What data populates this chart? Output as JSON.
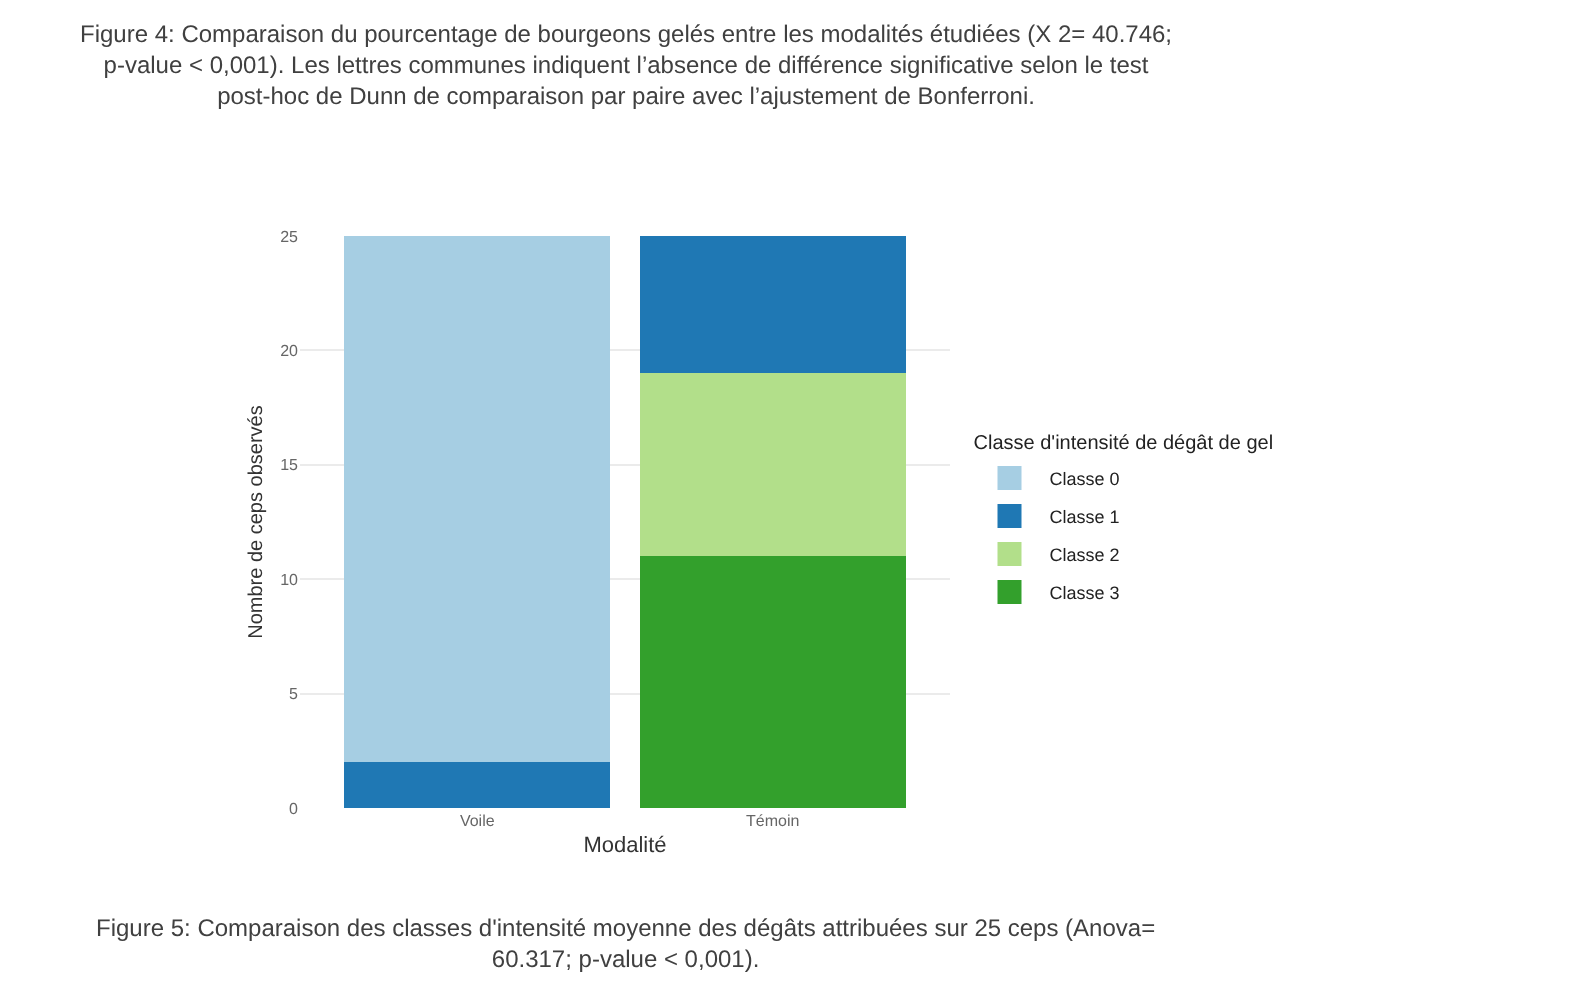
{
  "chart_data": {
    "type": "bar",
    "stacked": true,
    "categories": [
      "Voile",
      "Témoin"
    ],
    "series": [
      {
        "name": "Classe 3",
        "color": "#33a02c",
        "values": [
          null,
          11
        ]
      },
      {
        "name": "Classe 2",
        "color": "#b2df8a",
        "values": [
          null,
          8
        ]
      },
      {
        "name": "Classe 1",
        "color": "#1f78b4",
        "values": [
          2,
          6
        ]
      },
      {
        "name": "Classe 0",
        "color": "#a6cee3",
        "values": [
          23,
          null
        ]
      }
    ],
    "xlabel": "Modalité",
    "ylabel": "Nombre de ceps observés",
    "legend_title": "Classe d'intensité de dégât de gel",
    "ylim": [
      0,
      25
    ],
    "yticks": [
      0,
      5,
      10,
      15,
      20,
      25
    ],
    "grid": true,
    "legend": "right",
    "annotations": [
      "Figure 4: Comparaison du pourcentage de bourgeons gelés entre les modalités étudiées (X 2= 40.746; p-value < 0,001). Les lettres communes indiquent l’absence de différence significative selon le test post-hoc de Dunn de comparaison par paire avec l’ajustement de Bonferroni.",
      "Figure 5: Comparaison des classes d'intensité moyenne des dégâts attribuées sur 25 ceps (Anova= 60.317; p-value < 0,001)."
    ]
  }
}
